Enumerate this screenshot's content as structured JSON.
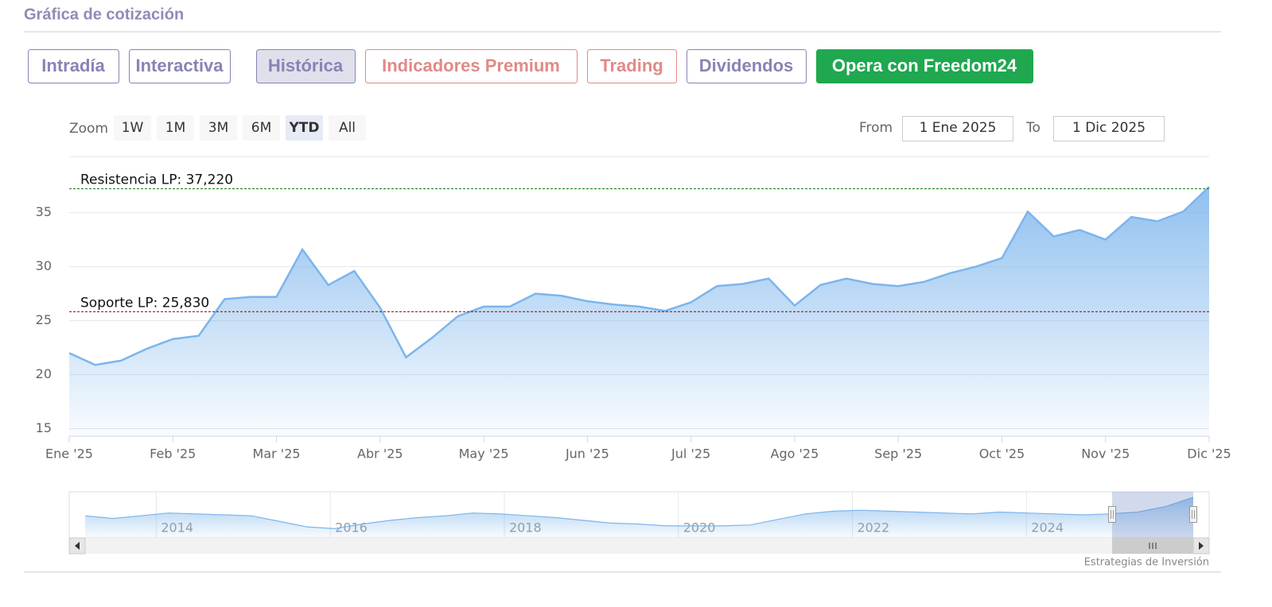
{
  "header": {
    "title": "Gráfica de cotización"
  },
  "tabs": [
    "Intradía",
    "Interactiva",
    "Histórica",
    "Indicadores Premium",
    "Trading",
    "Dividendos",
    "Opera con Freedom24"
  ],
  "zoom": {
    "label": "Zoom",
    "buttons": [
      "1W",
      "1M",
      "3M",
      "6M",
      "YTD",
      "All"
    ],
    "selected": "YTD"
  },
  "range": {
    "from_label": "From",
    "from": "1 Ene 2025",
    "to_label": "To",
    "to": "1 Dic 2025"
  },
  "chart_data": {
    "type": "area",
    "color": "#7cb5ec",
    "categories": [
      "Ene '25",
      null,
      null,
      null,
      "Feb '25",
      null,
      null,
      null,
      "Mar '25",
      null,
      null,
      null,
      "Abr '25",
      null,
      null,
      null,
      "May '25",
      null,
      null,
      null,
      "Jun '25",
      null,
      null,
      null,
      "Jul '25",
      null,
      null,
      null,
      "Ago '25",
      null,
      null,
      null,
      "Sep '25",
      null,
      null,
      null,
      "Oct '25",
      null,
      null,
      null,
      "Nov '25",
      null,
      null,
      null,
      "Dic '25"
    ],
    "values": [
      22.0,
      20.9,
      21.3,
      22.4,
      23.3,
      23.6,
      27.0,
      27.2,
      27.2,
      31.6,
      28.3,
      29.6,
      26.2,
      21.6,
      23.4,
      25.4,
      26.3,
      26.3,
      27.5,
      27.3,
      26.8,
      26.5,
      26.3,
      25.9,
      26.7,
      28.2,
      28.4,
      28.9,
      26.4,
      28.3,
      28.9,
      28.4,
      28.2,
      28.6,
      29.4,
      30.0,
      30.8,
      35.1,
      32.8,
      33.4,
      32.5,
      34.6,
      34.2,
      35.1,
      37.4
    ],
    "ylim": [
      14.3,
      40.2
    ],
    "yticks": [
      15,
      20,
      25,
      30,
      35
    ],
    "grid": true,
    "annotations": [
      {
        "label": "Resistencia LP: 37,220",
        "value": 37.22,
        "color": "#2e8b2e"
      },
      {
        "label": "Soporte LP: 25,830",
        "value": 25.83,
        "color": "#a01020"
      }
    ]
  },
  "navigator": {
    "values": [
      27,
      25.5,
      27,
      28.5,
      28,
      27.5,
      27,
      24,
      21,
      20,
      22.5,
      24.5,
      26,
      27,
      28.5,
      28,
      27,
      26,
      24.5,
      23,
      22.5,
      21.5,
      21.5,
      21.5,
      22,
      25,
      28,
      29.5,
      30,
      29.5,
      29,
      28.5,
      28,
      29,
      28.5,
      28,
      27.5,
      28,
      29,
      32,
      37
    ],
    "ylim": [
      15,
      40
    ],
    "xlim": [
      2013,
      2026.1
    ],
    "xticks": [
      2014,
      2016,
      2018,
      2020,
      2022,
      2024
    ]
  },
  "credit": "Estrategias de Inversión"
}
